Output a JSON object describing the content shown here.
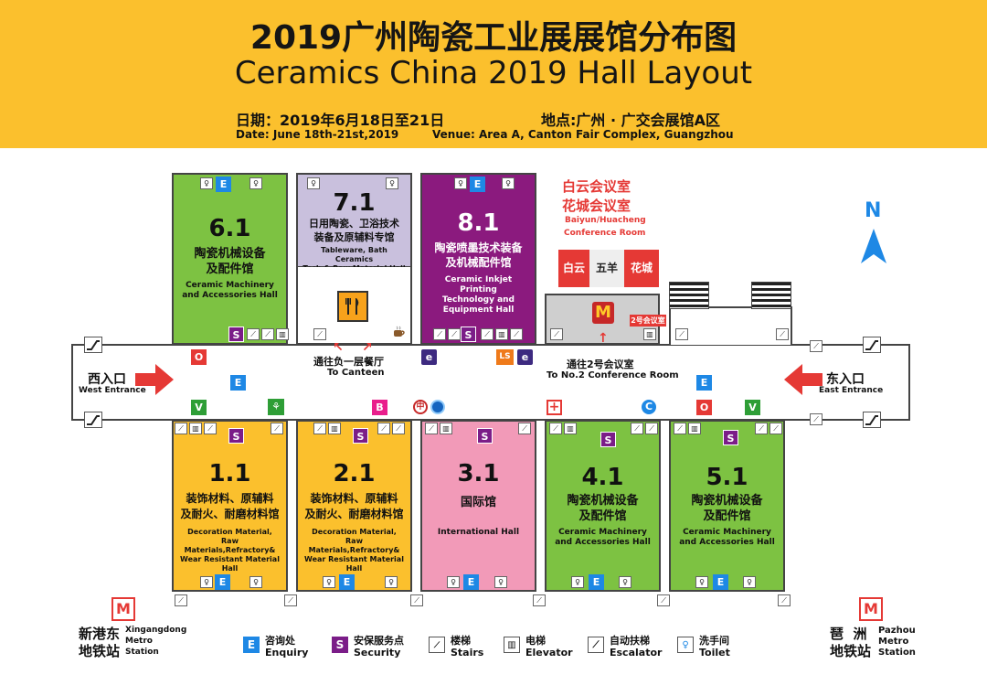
{
  "header": {
    "title_cn": "2019广州陶瓷工业展展馆分布图",
    "title_en": "Ceramics China 2019 Hall Layout",
    "date_cn": "日期：2019年6月18日至21日",
    "venue_cn": "地点:广州 · 广交会展馆A区",
    "date_en": "Date: June 18th-21st,2019",
    "venue_en": "Venue: Area A, Canton Fair Complex, Guangzhou"
  },
  "colors": {
    "header": "#fbc02d",
    "machinery_hall": "#7dc242",
    "material_hall": "#fbc02d",
    "international_hall": "#f29ab8",
    "inkjet_hall": "#8b1a7e",
    "tableware_hall": "#c9c0dd"
  },
  "halls": {
    "h61": {
      "number": "6.1",
      "name_cn": "陶瓷机械设备\n及配件馆",
      "name_en": "Ceramic Machinery\nand Accessories Hall"
    },
    "h71": {
      "number": "7.1",
      "name_cn": "日用陶瓷、卫浴技术\n装备及原辅料专馆",
      "name_en": "Tableware, Bath Ceramics\nTech & Raw Material Hall"
    },
    "h81": {
      "number": "8.1",
      "name_cn": "陶瓷喷墨技术装备\n及机械配件馆",
      "name_en": "Ceramic Inkjet Printing\nTechnology and\nEquipment Hall"
    },
    "h11": {
      "number": "1.1",
      "name_cn": "装饰材料、原辅料\n及耐火、耐磨材料馆",
      "name_en": "Decoration Material,\nRaw Materials,Refractory&\nWear Resistant Material Hall"
    },
    "h21": {
      "number": "2.1",
      "name_cn": "装饰材料、原辅料\n及耐火、耐磨材料馆",
      "name_en": "Decoration Material,\nRaw Materials,Refractory&\nWear Resistant Material Hall"
    },
    "h31": {
      "number": "3.1",
      "name_cn": "国际馆",
      "name_en": "International  Hall"
    },
    "h41": {
      "number": "4.1",
      "name_cn": "陶瓷机械设备\n及配件馆",
      "name_en": "Ceramic Machinery\nand Accessories Hall"
    },
    "h51": {
      "number": "5.1",
      "name_cn": "陶瓷机械设备\n及配件馆",
      "name_en": "Ceramic Machinery\nand Accessories Hall"
    }
  },
  "conference": {
    "title_cn_1": "白云会议室",
    "title_cn_2": "花城会议室",
    "title_en_1": "Baiyun/Huacheng",
    "title_en_2": "Conference Room",
    "room_baiyun": "白云",
    "room_wuyang": "五羊",
    "room_huacheng": "花城",
    "room2_label": "2号会议室",
    "to_room2_cn": "通往2号会议室",
    "to_room2_en": "To No.2 Conference Room"
  },
  "canteen": {
    "cn": "通往负一层餐厅",
    "en": "To Canteen"
  },
  "entrances": {
    "west_cn": "西入口",
    "west_en": "West Entrance",
    "east_cn": "东入口",
    "east_en": "East Entrance"
  },
  "compass": "N",
  "badges": {
    "enquiry": "E",
    "security": "S",
    "o": "O",
    "v": "V",
    "b": "B",
    "e_small": "e",
    "ls": "LS"
  },
  "metro": {
    "west_cn_1": "新港东",
    "west_cn_2": "地铁站",
    "west_en_1": "Xingangdong",
    "west_en_2": "Metro",
    "west_en_3": "Station",
    "east_cn_1": "琶  洲",
    "east_cn_2": "地铁站",
    "east_en_1": "Pazhou",
    "east_en_2": "Metro",
    "east_en_3": "Station"
  },
  "legend": [
    {
      "icon": "E",
      "cn": "咨询处",
      "en": "Enquiry"
    },
    {
      "icon": "S",
      "cn": "安保服务点",
      "en": "Security"
    },
    {
      "icon": "stairs-icon",
      "cn": "楼梯",
      "en": "Stairs"
    },
    {
      "icon": "elevator-icon",
      "cn": "电梯",
      "en": "Elevator"
    },
    {
      "icon": "escalator-icon",
      "cn": "自动扶梯",
      "en": "Escalator"
    },
    {
      "icon": "toilet-icon",
      "cn": "洗手间",
      "en": "Toilet"
    }
  ]
}
